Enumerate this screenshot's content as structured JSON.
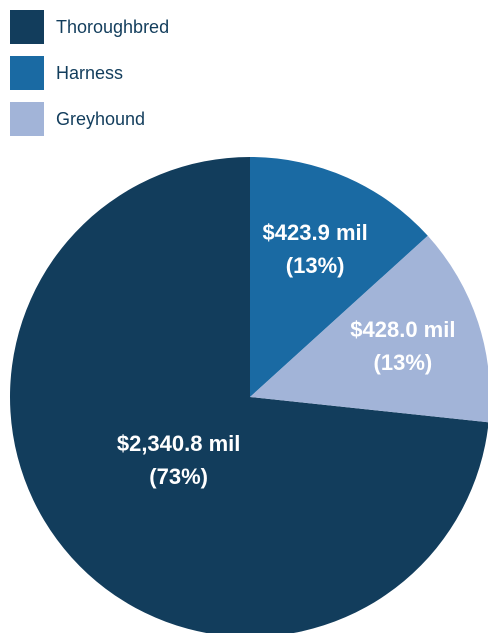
{
  "chart_data": {
    "type": "pie",
    "categories": [
      "Thoroughbred",
      "Harness",
      "Greyhound"
    ],
    "values": [
      2340.8,
      423.9,
      428.0
    ],
    "value_labels": [
      "$2,340.8 mil",
      "$423.9 mil",
      "$428.0 mil"
    ],
    "percents": [
      73,
      13,
      13
    ],
    "percent_labels": [
      "(73%)",
      "(13%)",
      "(13%)"
    ],
    "colors": [
      "#123d5c",
      "#1a6aa3",
      "#a2b4d8"
    ],
    "legend": "top-left"
  }
}
